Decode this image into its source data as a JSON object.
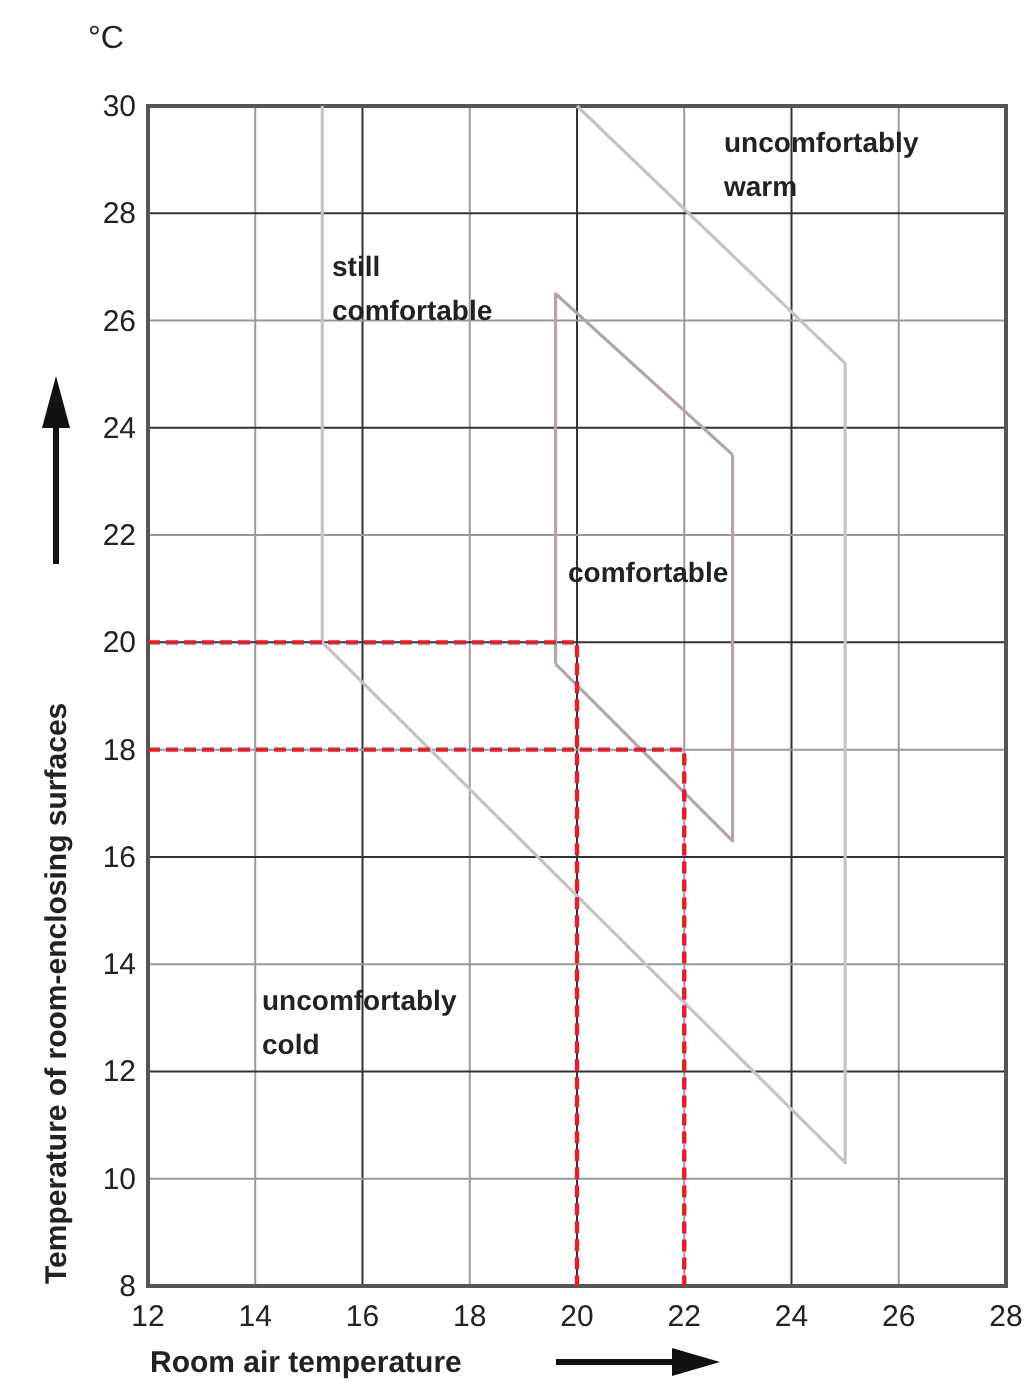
{
  "chart_data": {
    "type": "line",
    "xlabel": "Room air temperature",
    "ylabel": "Temperature of room-enclosing surfaces",
    "xlim": [
      12,
      28
    ],
    "ylim": [
      8,
      30
    ],
    "xticks": [
      12,
      14,
      16,
      18,
      20,
      22,
      24,
      26,
      28
    ],
    "yticks": [
      8,
      10,
      12,
      14,
      16,
      18,
      20,
      22,
      24,
      26,
      28,
      30
    ],
    "grid": true,
    "marker": "none",
    "series": [
      {
        "color": "#c8c2c2",
        "x": [
          15.25,
          15.25,
          25,
          25,
          20
        ],
        "values": [
          30,
          20,
          10.3,
          25.2,
          30
        ],
        "line_style": "solid"
      },
      {
        "color": "#b4a6a6",
        "x": [
          19.6,
          19.6,
          22.9
        ],
        "values": [
          19.6,
          26.5,
          23.5
        ],
        "line_style": "solid"
      },
      {
        "color": "#b4a6a6",
        "x": [
          19.6,
          22.9,
          22.9
        ],
        "values": [
          19.6,
          16.3,
          23.5
        ],
        "line_style": "solid"
      },
      {
        "color": "#e0202a",
        "x": [
          12,
          20,
          20
        ],
        "values": [
          20,
          20,
          8
        ],
        "line_style": "dashed"
      },
      {
        "color": "#e0202a",
        "x": [
          12,
          22,
          22
        ],
        "values": [
          18,
          18,
          8
        ],
        "line_style": "dashed"
      }
    ],
    "annotations": [
      "°C",
      "uncomfortably\nwarm",
      "still\ncomfortable",
      "comfortable",
      "uncomfortably\ncold"
    ]
  }
}
